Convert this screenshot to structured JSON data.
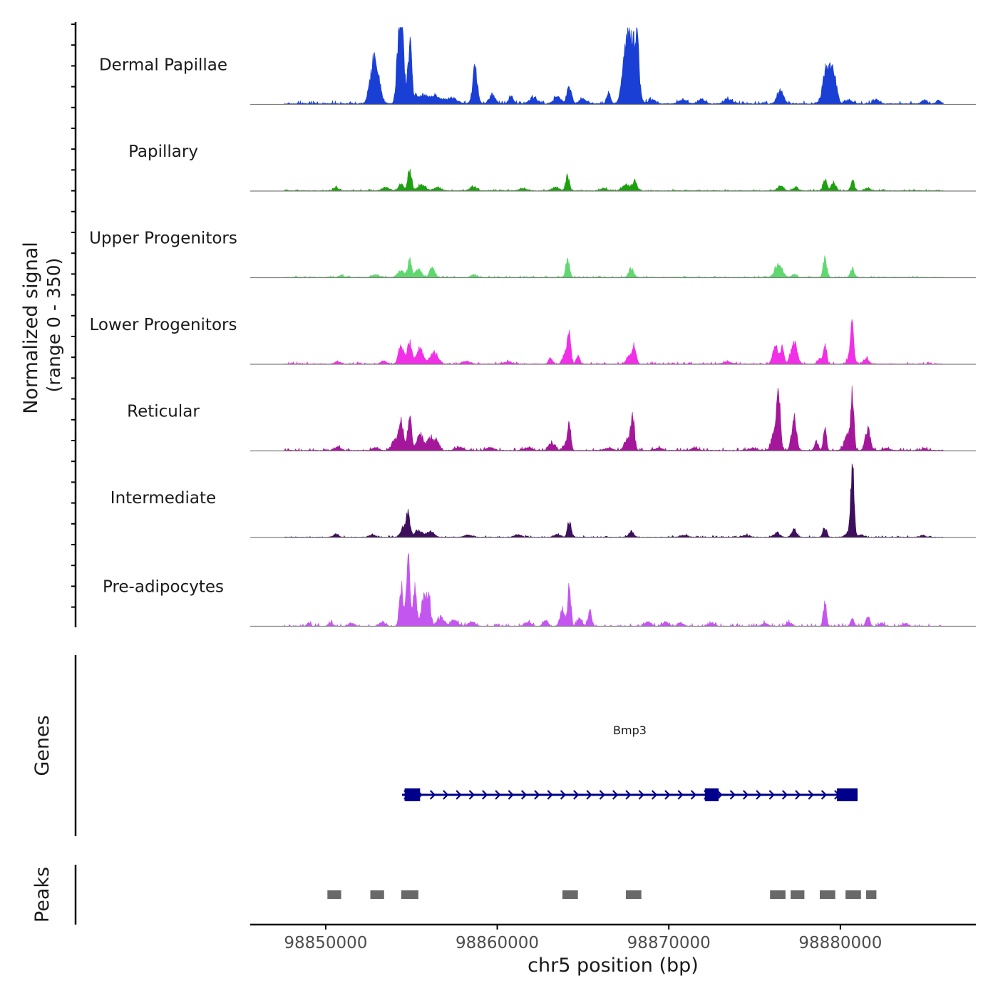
{
  "chart_data": {
    "type": "area",
    "title": "",
    "ylabel": "Normalized signal",
    "ylabel_range": "(range 0 - 350)",
    "ylim": [
      0,
      350
    ],
    "xlabel": "chr5 position (bp)",
    "xlim": [
      98845600,
      98887900
    ],
    "x_ticks": [
      98850000,
      98860000,
      98870000,
      98880000
    ],
    "x_tick_labels": [
      "98850000",
      "98860000",
      "98870000",
      "98880000"
    ],
    "tracks": [
      {
        "name": "Dermal Papillae",
        "color": "#1A3FD4",
        "baseline": 4,
        "noise": 6,
        "peaks": [
          [
            98852800,
            300,
            190
          ],
          [
            98853100,
            200,
            60
          ],
          [
            98854300,
            200,
            340
          ],
          [
            98854500,
            150,
            190
          ],
          [
            98854900,
            150,
            260
          ],
          [
            98855500,
            600,
            40
          ],
          [
            98856400,
            400,
            30
          ],
          [
            98857300,
            500,
            25
          ],
          [
            98858700,
            200,
            150
          ],
          [
            98859700,
            250,
            40
          ],
          [
            98860800,
            200,
            30
          ],
          [
            98862100,
            300,
            30
          ],
          [
            98863500,
            300,
            30
          ],
          [
            98864200,
            180,
            75
          ],
          [
            98865000,
            300,
            20
          ],
          [
            98866500,
            150,
            50
          ],
          [
            98867400,
            250,
            160
          ],
          [
            98867700,
            250,
            270
          ],
          [
            98868100,
            220,
            300
          ],
          [
            98869000,
            300,
            20
          ],
          [
            98870800,
            300,
            20
          ],
          [
            98871900,
            300,
            20
          ],
          [
            98873500,
            300,
            20
          ],
          [
            98876500,
            250,
            60
          ],
          [
            98879200,
            300,
            160
          ],
          [
            98879600,
            250,
            120
          ],
          [
            98880500,
            250,
            20
          ],
          [
            98882100,
            250,
            20
          ],
          [
            98884900,
            200,
            20
          ],
          [
            98885700,
            200,
            15
          ]
        ]
      },
      {
        "name": "Papillary",
        "color": "#1EA010",
        "baseline": 2,
        "noise": 3,
        "peaks": [
          [
            98850600,
            200,
            15
          ],
          [
            98853500,
            300,
            15
          ],
          [
            98854400,
            200,
            30
          ],
          [
            98854900,
            150,
            100
          ],
          [
            98855600,
            300,
            25
          ],
          [
            98856500,
            300,
            15
          ],
          [
            98858600,
            250,
            20
          ],
          [
            98861500,
            300,
            10
          ],
          [
            98863400,
            300,
            15
          ],
          [
            98864100,
            150,
            65
          ],
          [
            98866200,
            250,
            10
          ],
          [
            98867500,
            300,
            25
          ],
          [
            98868000,
            200,
            40
          ],
          [
            98876500,
            250,
            20
          ],
          [
            98877400,
            200,
            15
          ],
          [
            98879100,
            150,
            50
          ],
          [
            98879600,
            200,
            30
          ],
          [
            98880700,
            150,
            45
          ],
          [
            98881600,
            250,
            10
          ]
        ]
      },
      {
        "name": "Upper Progenitors",
        "color": "#5FD870",
        "baseline": 2,
        "noise": 3,
        "peaks": [
          [
            98850900,
            200,
            10
          ],
          [
            98852900,
            250,
            12
          ],
          [
            98854400,
            300,
            30
          ],
          [
            98854900,
            150,
            75
          ],
          [
            98855400,
            250,
            35
          ],
          [
            98856200,
            200,
            45
          ],
          [
            98858600,
            200,
            12
          ],
          [
            98864100,
            150,
            85
          ],
          [
            98867800,
            200,
            40
          ],
          [
            98876400,
            300,
            60
          ],
          [
            98877300,
            200,
            12
          ],
          [
            98879100,
            150,
            80
          ],
          [
            98880700,
            150,
            40
          ]
        ]
      },
      {
        "name": "Lower Progenitors",
        "color": "#F02FE6",
        "baseline": 2,
        "noise": 4,
        "peaks": [
          [
            98850700,
            250,
            10
          ],
          [
            98853400,
            250,
            12
          ],
          [
            98854400,
            200,
            90
          ],
          [
            98854900,
            200,
            95
          ],
          [
            98855500,
            250,
            70
          ],
          [
            98856300,
            300,
            55
          ],
          [
            98858200,
            300,
            12
          ],
          [
            98860600,
            300,
            10
          ],
          [
            98863100,
            150,
            25
          ],
          [
            98864000,
            200,
            60
          ],
          [
            98864200,
            120,
            145
          ],
          [
            98864700,
            150,
            35
          ],
          [
            98867700,
            200,
            45
          ],
          [
            98868000,
            150,
            75
          ],
          [
            98873400,
            300,
            10
          ],
          [
            98876200,
            200,
            80
          ],
          [
            98876600,
            150,
            70
          ],
          [
            98877300,
            250,
            100
          ],
          [
            98878800,
            150,
            25
          ],
          [
            98879100,
            120,
            100
          ],
          [
            98880600,
            200,
            50
          ],
          [
            98880700,
            120,
            150
          ],
          [
            98881500,
            200,
            25
          ]
        ]
      },
      {
        "name": "Reticular",
        "color": "#A4179A",
        "baseline": 3,
        "noise": 5,
        "peaks": [
          [
            98850700,
            250,
            15
          ],
          [
            98852900,
            250,
            12
          ],
          [
            98854000,
            250,
            40
          ],
          [
            98854400,
            200,
            130
          ],
          [
            98854900,
            150,
            160
          ],
          [
            98855500,
            250,
            75
          ],
          [
            98856100,
            250,
            60
          ],
          [
            98856500,
            200,
            40
          ],
          [
            98857800,
            300,
            15
          ],
          [
            98859600,
            300,
            12
          ],
          [
            98861800,
            300,
            12
          ],
          [
            98863200,
            250,
            35
          ],
          [
            98864000,
            200,
            30
          ],
          [
            98864200,
            120,
            120
          ],
          [
            98866500,
            300,
            10
          ],
          [
            98867600,
            250,
            50
          ],
          [
            98867900,
            150,
            130
          ],
          [
            98869400,
            300,
            10
          ],
          [
            98871500,
            300,
            10
          ],
          [
            98874900,
            300,
            10
          ],
          [
            98876200,
            250,
            100
          ],
          [
            98876400,
            150,
            200
          ],
          [
            98877300,
            200,
            135
          ],
          [
            98878600,
            150,
            40
          ],
          [
            98879100,
            120,
            110
          ],
          [
            98880400,
            250,
            70
          ],
          [
            98880700,
            120,
            250
          ],
          [
            98881600,
            200,
            95
          ],
          [
            98882700,
            250,
            10
          ],
          [
            98884900,
            200,
            10
          ]
        ]
      },
      {
        "name": "Intermediate",
        "color": "#3D0F5C",
        "baseline": 2,
        "noise": 3,
        "peaks": [
          [
            98850600,
            200,
            15
          ],
          [
            98852700,
            250,
            10
          ],
          [
            98854500,
            200,
            45
          ],
          [
            98854800,
            150,
            110
          ],
          [
            98855400,
            300,
            30
          ],
          [
            98856100,
            300,
            25
          ],
          [
            98858300,
            300,
            10
          ],
          [
            98861200,
            300,
            10
          ],
          [
            98863500,
            250,
            12
          ],
          [
            98864200,
            150,
            70
          ],
          [
            98867800,
            200,
            25
          ],
          [
            98870900,
            300,
            8
          ],
          [
            98874500,
            300,
            8
          ],
          [
            98876300,
            250,
            20
          ],
          [
            98877300,
            200,
            35
          ],
          [
            98879100,
            150,
            45
          ],
          [
            98880500,
            250,
            25
          ],
          [
            98880700,
            130,
            300
          ],
          [
            98881200,
            250,
            10
          ],
          [
            98884800,
            200,
            8
          ]
        ]
      },
      {
        "name": "Pre-adipocytes",
        "color": "#C456F0",
        "baseline": 0,
        "noise": 6,
        "peaks": [
          [
            98849000,
            150,
            15
          ],
          [
            98850300,
            200,
            15
          ],
          [
            98851500,
            250,
            15
          ],
          [
            98853300,
            250,
            20
          ],
          [
            98854400,
            150,
            190
          ],
          [
            98854800,
            150,
            330
          ],
          [
            98855200,
            150,
            170
          ],
          [
            98855700,
            200,
            120
          ],
          [
            98856000,
            150,
            150
          ],
          [
            98856700,
            300,
            40
          ],
          [
            98857500,
            300,
            25
          ],
          [
            98858500,
            300,
            20
          ],
          [
            98861800,
            250,
            20
          ],
          [
            98862800,
            200,
            25
          ],
          [
            98863800,
            200,
            70
          ],
          [
            98864200,
            130,
            170
          ],
          [
            98864800,
            200,
            35
          ],
          [
            98865400,
            150,
            70
          ],
          [
            98868800,
            250,
            20
          ],
          [
            98869800,
            250,
            20
          ],
          [
            98870700,
            250,
            15
          ],
          [
            98872500,
            250,
            15
          ],
          [
            98875600,
            250,
            15
          ],
          [
            98877000,
            250,
            15
          ],
          [
            98879100,
            130,
            110
          ],
          [
            98880700,
            150,
            35
          ],
          [
            98881600,
            150,
            50
          ],
          [
            98882400,
            200,
            15
          ],
          [
            98883800,
            200,
            15
          ]
        ]
      }
    ],
    "genes_label": "Genes",
    "genes": [
      {
        "name": "Bmp3",
        "strand": "+",
        "start": 98854450,
        "end": 98881000,
        "exons": [
          [
            98854600,
            98855500
          ],
          [
            98872100,
            98872900
          ],
          [
            98879800,
            98881000
          ]
        ]
      }
    ],
    "peaks_label": "Peaks",
    "peak_regions": [
      [
        98850100,
        98850900
      ],
      [
        98852600,
        98853400
      ],
      [
        98854400,
        98855400
      ],
      [
        98863800,
        98864700
      ],
      [
        98867500,
        98868400
      ],
      [
        98875900,
        98876800
      ],
      [
        98877100,
        98877900
      ],
      [
        98878800,
        98879700
      ],
      [
        98880300,
        98881200
      ],
      [
        98881500,
        98882100
      ]
    ],
    "colors": {
      "axis": "#000000",
      "baseline_rule": "#7F7F7F",
      "gene": "#00008B",
      "peak": "#696969"
    }
  }
}
